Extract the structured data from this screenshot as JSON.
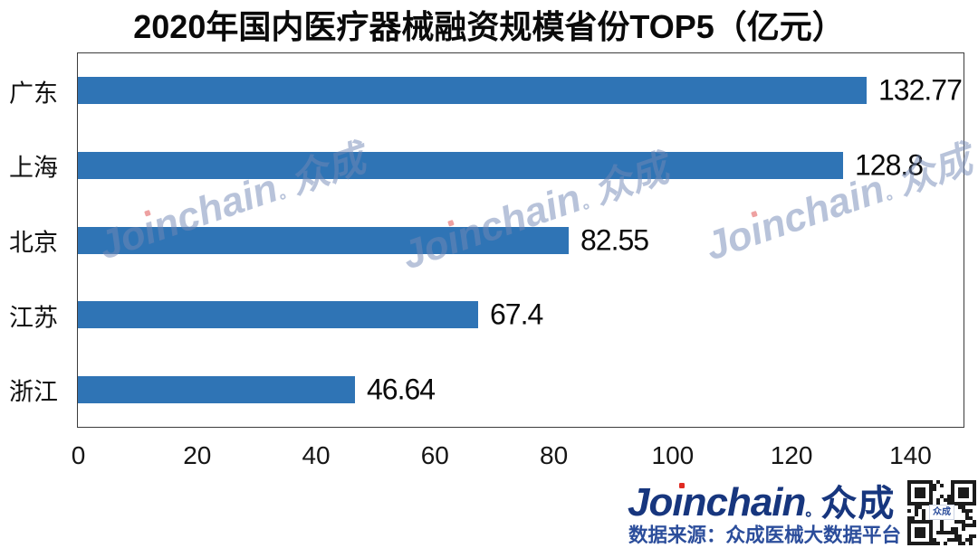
{
  "chart_data": {
    "type": "bar",
    "orientation": "horizontal",
    "title": "2020年国内医疗器械融资规模省份TOP5（亿元）",
    "categories": [
      "广东",
      "上海",
      "北京",
      "江苏",
      "浙江"
    ],
    "values": [
      132.77,
      128.8,
      82.55,
      67.4,
      46.64
    ],
    "value_labels": [
      "132.77",
      "128.8",
      "82.55",
      "67.4",
      "46.64"
    ],
    "xlabel": "",
    "ylabel": "",
    "xlim": [
      0,
      149
    ],
    "x_ticks": [
      0,
      20,
      40,
      60,
      80,
      100,
      120,
      140
    ],
    "grid": false,
    "legend": null,
    "bar_color": "#2f74b5",
    "frame_color": "#3c3c3c"
  },
  "watermark": {
    "full_text": "Joinchain。众成",
    "brand_latin": "Joinchain",
    "separator": "。",
    "brand_cjk": "众成"
  },
  "footer": {
    "logo_latin": "Joinchain",
    "logo_separator": "。",
    "logo_cjk": "众成",
    "logo_color": "#17367e",
    "accent_red": "#e02a22",
    "source_text": "数据来源：众成医械大数据平台",
    "source_color": "#2b4d9b",
    "qr_center_label": "众成"
  }
}
